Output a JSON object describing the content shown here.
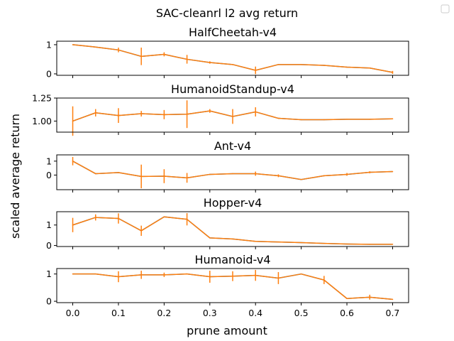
{
  "figure": {
    "suptitle": "SAC-cleanrl l2 avg return",
    "xlabel": "prune amount",
    "ylabel": "scaled average return",
    "line_color": "#ff7f0e",
    "under_color": "#1f77b4"
  },
  "chart_data": [
    {
      "type": "line",
      "title": "HalfCheetah-v4",
      "xlim": [
        -0.035,
        0.735
      ],
      "ylim": [
        -0.05,
        1.12
      ],
      "yticks": [
        0,
        1
      ],
      "ytick_labels": [
        "0",
        "1"
      ],
      "x": [
        0.0,
        0.05,
        0.1,
        0.15,
        0.2,
        0.25,
        0.3,
        0.35,
        0.4,
        0.45,
        0.5,
        0.55,
        0.6,
        0.65,
        0.7
      ],
      "y": [
        1.0,
        0.92,
        0.82,
        0.6,
        0.67,
        0.5,
        0.39,
        0.32,
        0.12,
        0.32,
        0.32,
        0.29,
        0.23,
        0.2,
        0.05
      ],
      "err": [
        0.0,
        0.0,
        0.08,
        0.3,
        0.07,
        0.15,
        0.04,
        0.0,
        0.13,
        0.0,
        0.0,
        0.0,
        0.0,
        0.0,
        0.05
      ]
    },
    {
      "type": "line",
      "title": "HumanoidStandup-v4",
      "xlim": [
        -0.035,
        0.735
      ],
      "ylim": [
        0.88,
        1.25
      ],
      "yticks": [
        1.0,
        1.25
      ],
      "ytick_labels": [
        "1.00",
        "1.25"
      ],
      "x": [
        0.0,
        0.05,
        0.1,
        0.15,
        0.2,
        0.25,
        0.3,
        0.35,
        0.4,
        0.45,
        0.5,
        0.55,
        0.6,
        0.65,
        0.7
      ],
      "y": [
        1.0,
        1.09,
        1.06,
        1.08,
        1.07,
        1.075,
        1.11,
        1.05,
        1.1,
        1.03,
        1.015,
        1.015,
        1.02,
        1.02,
        1.025
      ],
      "err": [
        0.16,
        0.04,
        0.08,
        0.03,
        0.05,
        0.15,
        0.02,
        0.08,
        0.05,
        0.0,
        0.0,
        0.0,
        0.0,
        0.0,
        0.0
      ]
    },
    {
      "type": "line",
      "title": "Ant-v4",
      "xlim": [
        -0.035,
        0.735
      ],
      "ylim": [
        -1.05,
        1.45
      ],
      "yticks": [
        0,
        1
      ],
      "ytick_labels": [
        "0",
        "1"
      ],
      "x": [
        0.0,
        0.05,
        0.1,
        0.15,
        0.2,
        0.25,
        0.3,
        0.35,
        0.4,
        0.45,
        0.5,
        0.55,
        0.6,
        0.65,
        0.7
      ],
      "y": [
        1.0,
        0.1,
        0.18,
        -0.1,
        -0.08,
        -0.2,
        0.05,
        0.1,
        0.1,
        -0.05,
        -0.32,
        -0.05,
        0.05,
        0.2,
        0.25
      ],
      "err": [
        0.3,
        0.0,
        0.0,
        0.85,
        0.5,
        0.35,
        0.0,
        0.0,
        0.15,
        0.1,
        0.0,
        0.0,
        0.1,
        0.07,
        0.0
      ]
    },
    {
      "type": "line",
      "title": "Hopper-v4",
      "xlim": [
        -0.035,
        0.735
      ],
      "ylim": [
        -0.05,
        1.65
      ],
      "yticks": [
        0,
        1
      ],
      "ytick_labels": [
        "0",
        "1"
      ],
      "x": [
        0.0,
        0.05,
        0.1,
        0.15,
        0.2,
        0.25,
        0.3,
        0.35,
        0.4,
        0.45,
        0.5,
        0.55,
        0.6,
        0.65,
        0.7
      ],
      "y": [
        1.0,
        1.37,
        1.32,
        0.72,
        1.4,
        1.28,
        0.37,
        0.32,
        0.2,
        0.17,
        0.14,
        0.1,
        0.07,
        0.06,
        0.06
      ],
      "err": [
        0.35,
        0.15,
        0.25,
        0.25,
        0.0,
        0.3,
        0.0,
        0.0,
        0.0,
        0.0,
        0.0,
        0.0,
        0.0,
        0.0,
        0.0
      ]
    },
    {
      "type": "line",
      "title": "Humanoid-v4",
      "xlim": [
        -0.035,
        0.735
      ],
      "ylim": [
        -0.05,
        1.2
      ],
      "yticks": [
        0,
        1
      ],
      "ytick_labels": [
        "0",
        "1"
      ],
      "x": [
        0.0,
        0.05,
        0.1,
        0.15,
        0.2,
        0.25,
        0.3,
        0.35,
        0.4,
        0.45,
        0.5,
        0.55,
        0.6,
        0.65,
        0.7
      ],
      "y": [
        1.0,
        1.0,
        0.9,
        0.97,
        0.97,
        1.0,
        0.9,
        0.92,
        0.95,
        0.85,
        1.0,
        0.78,
        0.1,
        0.15,
        0.07
      ],
      "err": [
        0.0,
        0.0,
        0.2,
        0.15,
        0.08,
        0.0,
        0.22,
        0.18,
        0.2,
        0.22,
        0.0,
        0.15,
        0.0,
        0.09,
        0.0
      ]
    }
  ],
  "xticks": [
    0.0,
    0.1,
    0.2,
    0.3,
    0.4,
    0.5,
    0.6,
    0.7
  ],
  "xtick_labels": [
    "0.0",
    "0.1",
    "0.2",
    "0.3",
    "0.4",
    "0.5",
    "0.6",
    "0.7"
  ]
}
